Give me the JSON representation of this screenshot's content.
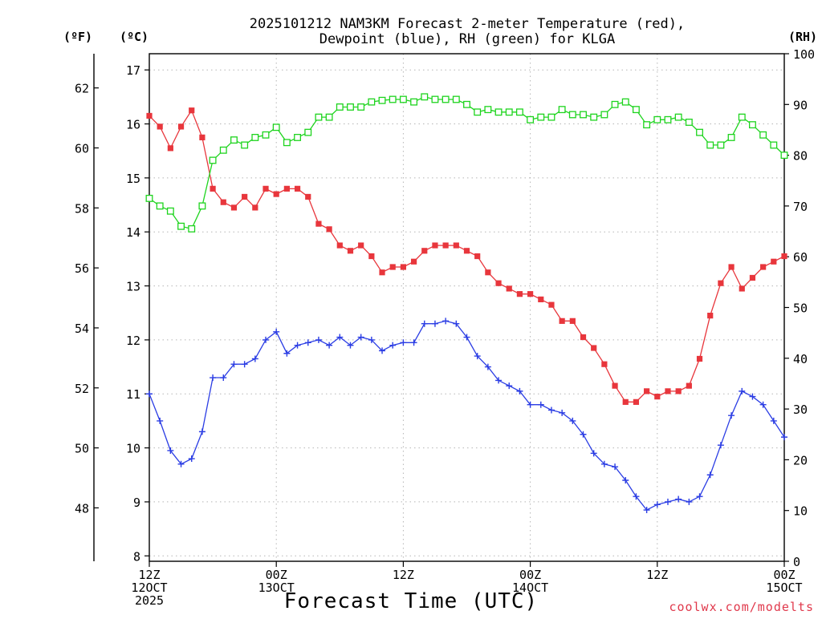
{
  "chart_data": {
    "type": "line",
    "title": [
      "2025101212 NAM3KM Forecast 2-meter Temperature (red),",
      "Dewpoint (blue), RH (green) for KLGA"
    ],
    "xlabel": "Forecast Time (UTC)",
    "credit": "coolwx.com/modelts",
    "unit_labels": {
      "fahrenheit": "(ºF)",
      "celsius": "(ºC)",
      "rh": "(RH)"
    },
    "x_range": [
      0,
      60
    ],
    "x_ticks": [
      {
        "x": 0,
        "lines": [
          "12Z",
          "12OCT",
          "2025"
        ]
      },
      {
        "x": 12,
        "lines": [
          "00Z",
          "13OCT"
        ]
      },
      {
        "x": 24,
        "lines": [
          "12Z"
        ]
      },
      {
        "x": 36,
        "lines": [
          "00Z",
          "14OCT"
        ]
      },
      {
        "x": 48,
        "lines": [
          "12Z"
        ]
      },
      {
        "x": 60,
        "lines": [
          "00Z",
          "15OCT"
        ]
      }
    ],
    "y_celsius": {
      "range": [
        7.9,
        17.3
      ],
      "ticks": [
        8,
        9,
        10,
        11,
        12,
        13,
        14,
        15,
        16,
        17
      ]
    },
    "y_fahrenheit": {
      "range": [
        46.22,
        63.14
      ],
      "ticks": [
        48,
        50,
        52,
        54,
        56,
        58,
        60,
        62
      ]
    },
    "y_rh": {
      "range": [
        0,
        100
      ],
      "ticks": [
        0,
        10,
        20,
        30,
        40,
        50,
        60,
        70,
        80,
        90,
        100
      ]
    },
    "grid": true,
    "series": [
      {
        "name": "2-meter Temperature",
        "unit": "C",
        "axis": "celsius",
        "color": "#e8363c",
        "marker": "filled-square",
        "x": [
          0,
          1,
          2,
          3,
          4,
          5,
          6,
          7,
          8,
          9,
          10,
          11,
          12,
          13,
          14,
          15,
          16,
          17,
          18,
          19,
          20,
          21,
          22,
          23,
          24,
          25,
          26,
          27,
          28,
          29,
          30,
          31,
          32,
          33,
          34,
          35,
          36,
          37,
          38,
          39,
          40,
          41,
          42,
          43,
          44,
          45,
          46,
          47,
          48,
          49,
          50,
          51,
          52,
          53,
          54,
          55,
          56,
          57,
          58,
          59,
          60
        ],
        "values": [
          16.15,
          15.95,
          15.55,
          15.95,
          16.25,
          15.75,
          14.8,
          14.55,
          14.45,
          14.65,
          14.45,
          14.8,
          14.7,
          14.8,
          14.8,
          14.65,
          14.15,
          14.05,
          13.75,
          13.65,
          13.75,
          13.55,
          13.25,
          13.35,
          13.35,
          13.45,
          13.65,
          13.75,
          13.75,
          13.75,
          13.65,
          13.55,
          13.25,
          13.05,
          12.95,
          12.85,
          12.85,
          12.75,
          12.65,
          12.35,
          12.35,
          12.05,
          11.85,
          11.55,
          11.15,
          10.85,
          10.85,
          11.05,
          10.95,
          11.05,
          11.05,
          11.15,
          11.65,
          12.45,
          13.05,
          13.35,
          12.95,
          13.15,
          13.35,
          13.45,
          13.55
        ]
      },
      {
        "name": "Dewpoint",
        "unit": "C",
        "axis": "celsius",
        "color": "#2b3de4",
        "marker": "plus",
        "x": [
          0,
          1,
          2,
          3,
          4,
          5,
          6,
          7,
          8,
          9,
          10,
          11,
          12,
          13,
          14,
          15,
          16,
          17,
          18,
          19,
          20,
          21,
          22,
          23,
          24,
          25,
          26,
          27,
          28,
          29,
          30,
          31,
          32,
          33,
          34,
          35,
          36,
          37,
          38,
          39,
          40,
          41,
          42,
          43,
          44,
          45,
          46,
          47,
          48,
          49,
          50,
          51,
          52,
          53,
          54,
          55,
          56,
          57,
          58,
          59,
          60
        ],
        "values": [
          11.0,
          10.5,
          9.95,
          9.7,
          9.8,
          10.3,
          11.3,
          11.3,
          11.55,
          11.55,
          11.65,
          12.0,
          12.15,
          11.75,
          11.9,
          11.95,
          12.0,
          11.9,
          12.05,
          11.9,
          12.05,
          12.0,
          11.8,
          11.9,
          11.95,
          11.95,
          12.3,
          12.3,
          12.35,
          12.3,
          12.05,
          11.7,
          11.5,
          11.25,
          11.15,
          11.05,
          10.8,
          10.8,
          10.7,
          10.65,
          10.5,
          10.25,
          9.9,
          9.7,
          9.65,
          9.4,
          9.1,
          8.85,
          8.95,
          9.0,
          9.05,
          9.0,
          9.1,
          9.5,
          10.05,
          10.6,
          11.05,
          10.95,
          10.8,
          10.5,
          10.2
        ]
      },
      {
        "name": "RH",
        "unit": "%",
        "axis": "rh",
        "color": "#1ed41e",
        "marker": "open-square",
        "x": [
          0,
          1,
          2,
          3,
          4,
          5,
          6,
          7,
          8,
          9,
          10,
          11,
          12,
          13,
          14,
          15,
          16,
          17,
          18,
          19,
          20,
          21,
          22,
          23,
          24,
          25,
          26,
          27,
          28,
          29,
          30,
          31,
          32,
          33,
          34,
          35,
          36,
          37,
          38,
          39,
          40,
          41,
          42,
          43,
          44,
          45,
          46,
          47,
          48,
          49,
          50,
          51,
          52,
          53,
          54,
          55,
          56,
          57,
          58,
          59,
          60
        ],
        "values": [
          71.5,
          70,
          69,
          66,
          65.5,
          70,
          79,
          81,
          83,
          82,
          83.5,
          84,
          85.5,
          82.5,
          83.5,
          84.5,
          87.5,
          87.5,
          89.5,
          89.5,
          89.5,
          90.5,
          90.8,
          91,
          91,
          90.5,
          91.5,
          91,
          91,
          91,
          90,
          88.5,
          89,
          88.5,
          88.5,
          88.5,
          87,
          87.5,
          87.5,
          89,
          88,
          88,
          87.5,
          88,
          90,
          90.5,
          89,
          86,
          87,
          87,
          87.5,
          86.5,
          84.5,
          82,
          82,
          83.5,
          87.5,
          86,
          84,
          82,
          80
        ]
      }
    ]
  }
}
